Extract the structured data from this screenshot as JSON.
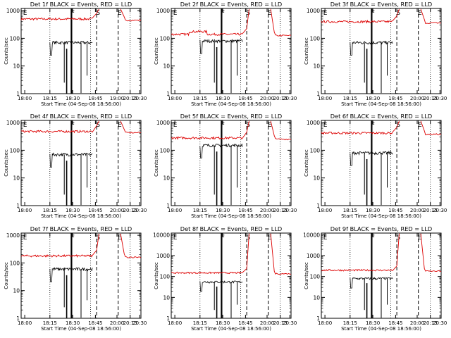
{
  "chart_data": [
    {
      "type": "line",
      "title": "Det 1f BLACK = Events, RED = LLD",
      "xlabel": "Start Time (04-Sep-08 18:56:00)",
      "ylabel": "Counts/sec",
      "x_ticks": [
        "18:00",
        "18:15",
        "18:30",
        "18:45",
        "19:00",
        "20:15",
        "20:30"
      ],
      "y_ticks": [
        "1",
        "10",
        "100",
        "1000"
      ],
      "yscale": "log",
      "ylim": [
        1,
        1200
      ],
      "red_level": 500,
      "black_level": 70,
      "markers": [
        "E",
        "F",
        "S",
        "E"
      ],
      "series": [
        {
          "name": "Events",
          "color": "#000000"
        },
        {
          "name": "LLD",
          "color": "#dd0000"
        }
      ]
    },
    {
      "type": "line",
      "title": "Det 2f BLACK = Events, RED = LLD",
      "xlabel": "Start Time (04-Sep-08 18:56:00)",
      "ylabel": "Counts/sec",
      "x_ticks": [
        "18:00",
        "18:15",
        "18:30",
        "18:45",
        "20:00",
        "20:15",
        "20:30"
      ],
      "y_ticks": [
        "1",
        "10",
        "100",
        "1000"
      ],
      "yscale": "log",
      "ylim": [
        1,
        1200
      ],
      "red_level": 140,
      "black_level": 80,
      "markers": [
        "E",
        "F",
        "S",
        "E"
      ],
      "series": [
        {
          "name": "Events",
          "color": "#000000"
        },
        {
          "name": "LLD",
          "color": "#dd0000"
        }
      ]
    },
    {
      "type": "line",
      "title": "Det 3f BLACK = Events, RED = LLD",
      "xlabel": "Start Time (04-Sep-08 18:56:00)",
      "ylabel": "Counts/sec",
      "x_ticks": [
        "18:00",
        "18:15",
        "18:30",
        "18:45",
        "20:00",
        "20:15",
        "20:30"
      ],
      "y_ticks": [
        "1",
        "10",
        "100",
        "1000"
      ],
      "yscale": "log",
      "ylim": [
        1,
        1200
      ],
      "red_level": 400,
      "black_level": 70,
      "markers": [
        "E",
        "F",
        "S",
        "E"
      ],
      "series": [
        {
          "name": "Events",
          "color": "#000000"
        },
        {
          "name": "LLD",
          "color": "#dd0000"
        }
      ]
    },
    {
      "type": "line",
      "title": "Det 4f BLACK = Events, RED = LLD",
      "xlabel": "Start Time (04-Sep-08 18:56:00)",
      "ylabel": "Counts/sec",
      "x_ticks": [
        "18:00",
        "18:15",
        "18:30",
        "18:45",
        "20:00",
        "20:15",
        "20:30"
      ],
      "y_ticks": [
        "1",
        "10",
        "100",
        "1000"
      ],
      "yscale": "log",
      "ylim": [
        1,
        1200
      ],
      "red_level": 480,
      "black_level": 70,
      "markers": [
        "E",
        "F",
        "S",
        "E"
      ],
      "series": [
        {
          "name": "Events",
          "color": "#000000"
        },
        {
          "name": "LLD",
          "color": "#dd0000"
        }
      ]
    },
    {
      "type": "line",
      "title": "Det 5f BLACK = Events, RED = LLD",
      "xlabel": "Start Time (04-Sep-08 18:56:00)",
      "ylabel": "Counts/sec",
      "x_ticks": [
        "18:00",
        "18:15",
        "18:30",
        "18:45",
        "20:00",
        "20:15",
        "20:30"
      ],
      "y_ticks": [
        "1",
        "10",
        "100",
        "1000"
      ],
      "yscale": "log",
      "ylim": [
        1,
        1200
      ],
      "red_level": 280,
      "black_level": 150,
      "markers": [
        "E",
        "F",
        "S",
        "E"
      ],
      "series": [
        {
          "name": "Events",
          "color": "#000000"
        },
        {
          "name": "LLD",
          "color": "#dd0000"
        }
      ]
    },
    {
      "type": "line",
      "title": "Det 6f BLACK = Events, RED = LLD",
      "xlabel": "Start Time (04-Sep-08 18:56:00)",
      "ylabel": "Counts/sec",
      "x_ticks": [
        "18:00",
        "18:15",
        "18:30",
        "18:45",
        "20:00",
        "20:15",
        "20:30"
      ],
      "y_ticks": [
        "1",
        "10",
        "100",
        "1000"
      ],
      "yscale": "log",
      "ylim": [
        1,
        1200
      ],
      "red_level": 420,
      "black_level": 80,
      "markers": [
        "E",
        "F",
        "S",
        "E"
      ],
      "series": [
        {
          "name": "Events",
          "color": "#000000"
        },
        {
          "name": "LLD",
          "color": "#dd0000"
        }
      ]
    },
    {
      "type": "line",
      "title": "Det 7f BLACK = Events, RED = LLD",
      "xlabel": "Start Time (04-Sep-08 18:56:00)",
      "ylabel": "Counts/sec",
      "x_ticks": [
        "18:00",
        "18:15",
        "18:30",
        "18:45",
        "20:00",
        "20:15",
        "20:30"
      ],
      "y_ticks": [
        "1",
        "10",
        "100",
        "1000"
      ],
      "yscale": "log",
      "ylim": [
        1,
        1200
      ],
      "red_level": 180,
      "black_level": 60,
      "markers": [
        "E",
        "F",
        "S",
        "E"
      ],
      "series": [
        {
          "name": "Events",
          "color": "#000000"
        },
        {
          "name": "LLD",
          "color": "#dd0000"
        }
      ]
    },
    {
      "type": "line",
      "title": "Det 8f BLACK = Events, RED = LLD",
      "xlabel": "Start Time (04-Sep-08 18:56:00)",
      "ylabel": "Counts/sec",
      "x_ticks": [
        "18:00",
        "18:15",
        "18:30",
        "18:45",
        "20:00",
        "20:15",
        "20:30"
      ],
      "y_ticks": [
        "1",
        "10",
        "100",
        "1000",
        "10000"
      ],
      "yscale": "log",
      "ylim": [
        1,
        12000
      ],
      "red_level": 150,
      "black_level": 55,
      "markers": [
        "E",
        "F",
        "S",
        "E"
      ],
      "series": [
        {
          "name": "Events",
          "color": "#000000"
        },
        {
          "name": "LLD",
          "color": "#dd0000"
        }
      ]
    },
    {
      "type": "line",
      "title": "Det 9f BLACK = Events, RED = LLD",
      "xlabel": "Start Time (04-Sep-08 18:56:00)",
      "ylabel": "Counts/sec",
      "x_ticks": [
        "18:00",
        "18:15",
        "18:30",
        "18:45",
        "20:00",
        "20:15",
        "20:30"
      ],
      "y_ticks": [
        "1",
        "10",
        "100",
        "1000",
        "10000"
      ],
      "yscale": "log",
      "ylim": [
        1,
        12000
      ],
      "red_level": 200,
      "black_level": 80,
      "markers": [
        "E",
        "F",
        "S",
        "E"
      ],
      "series": [
        {
          "name": "Events",
          "color": "#000000"
        },
        {
          "name": "LLD",
          "color": "#dd0000"
        }
      ]
    }
  ]
}
